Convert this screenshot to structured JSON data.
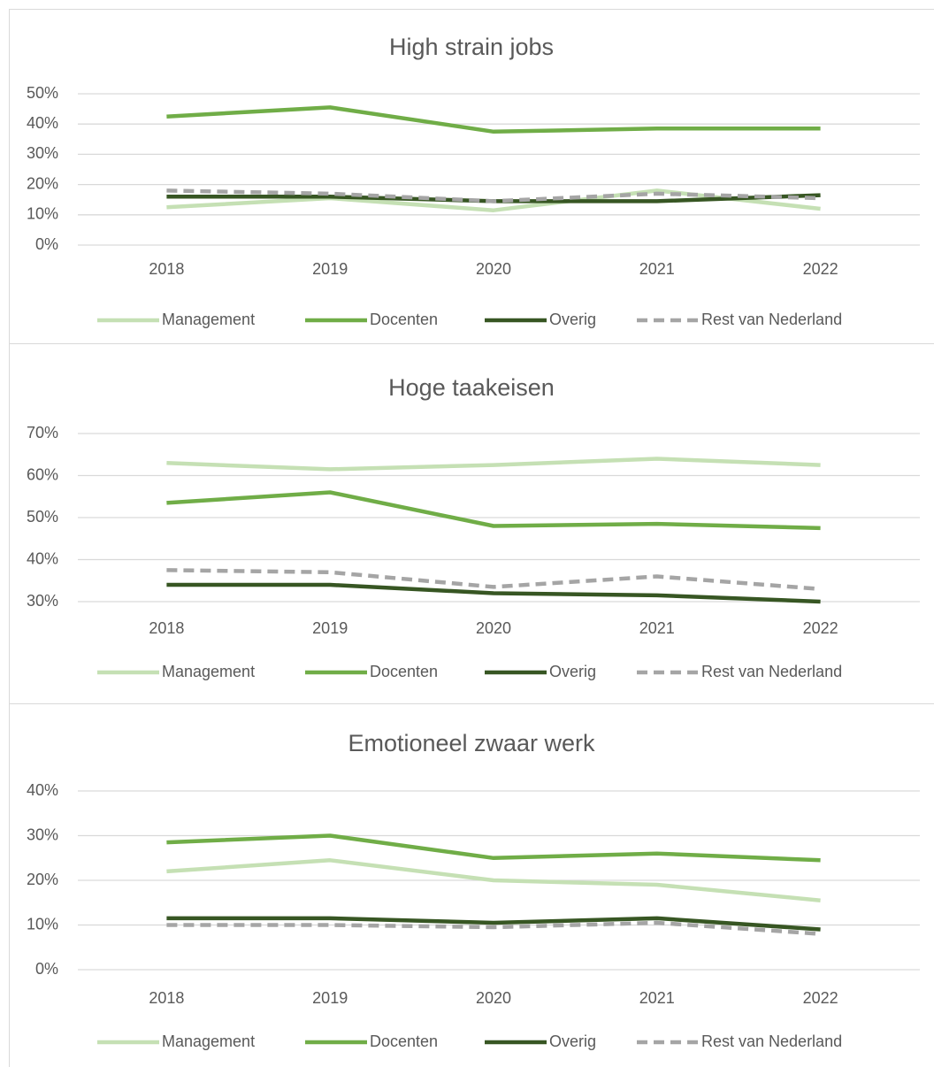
{
  "chart_data": [
    {
      "type": "line",
      "title": "High strain jobs",
      "categories": [
        "2018",
        "2019",
        "2020",
        "2021",
        "2022"
      ],
      "ylim": [
        0,
        50
      ],
      "yticks": [
        {
          "value": 0,
          "label": "0%"
        },
        {
          "value": 10,
          "label": "10%"
        },
        {
          "value": 20,
          "label": "20%"
        },
        {
          "value": 30,
          "label": "30%"
        },
        {
          "value": 40,
          "label": "40%"
        },
        {
          "value": 50,
          "label": "50%"
        }
      ],
      "grid": true,
      "legend": "bottom",
      "series": [
        {
          "name": "Management",
          "color": "#c5e0b4",
          "values": [
            12.5,
            15.5,
            11.5,
            18,
            12
          ]
        },
        {
          "name": "Docenten",
          "color": "#70ad47",
          "values": [
            42.5,
            45.5,
            37.5,
            38.5,
            38.5
          ]
        },
        {
          "name": "Overig",
          "color": "#375623",
          "values": [
            16,
            16,
            14.5,
            14.5,
            16.5
          ]
        },
        {
          "name": "Rest van Nederland",
          "color": "#a5a5a5",
          "dashed": true,
          "values": [
            18,
            17,
            14.5,
            17,
            15.5
          ]
        }
      ]
    },
    {
      "type": "line",
      "title": "Hoge taakeisen",
      "categories": [
        "2018",
        "2019",
        "2020",
        "2021",
        "2022"
      ],
      "ylim": [
        30,
        70
      ],
      "yticks": [
        {
          "value": 30,
          "label": "30%"
        },
        {
          "value": 40,
          "label": "40%"
        },
        {
          "value": 50,
          "label": "50%"
        },
        {
          "value": 60,
          "label": "60%"
        },
        {
          "value": 70,
          "label": "70%"
        }
      ],
      "grid": true,
      "legend": "bottom",
      "series": [
        {
          "name": "Management",
          "color": "#c5e0b4",
          "values": [
            63,
            61.5,
            62.5,
            64,
            62.5
          ]
        },
        {
          "name": "Docenten",
          "color": "#70ad47",
          "values": [
            53.5,
            56,
            48,
            48.5,
            47.5
          ]
        },
        {
          "name": "Overig",
          "color": "#375623",
          "values": [
            34,
            34,
            32,
            31.5,
            30
          ]
        },
        {
          "name": "Rest van Nederland",
          "color": "#a5a5a5",
          "dashed": true,
          "values": [
            37.5,
            37,
            33.5,
            36,
            33
          ]
        }
      ]
    },
    {
      "type": "line",
      "title": "Emotioneel zwaar werk",
      "categories": [
        "2018",
        "2019",
        "2020",
        "2021",
        "2022"
      ],
      "ylim": [
        0,
        40
      ],
      "yticks": [
        {
          "value": 0,
          "label": "0%"
        },
        {
          "value": 10,
          "label": "10%"
        },
        {
          "value": 20,
          "label": "20%"
        },
        {
          "value": 30,
          "label": "30%"
        },
        {
          "value": 40,
          "label": "40%"
        }
      ],
      "grid": true,
      "legend": "bottom",
      "series": [
        {
          "name": "Management",
          "color": "#c5e0b4",
          "values": [
            22,
            24.5,
            20,
            19,
            15.5
          ]
        },
        {
          "name": "Docenten",
          "color": "#70ad47",
          "values": [
            28.5,
            30,
            25,
            26,
            24.5
          ]
        },
        {
          "name": "Overig",
          "color": "#375623",
          "values": [
            11.5,
            11.5,
            10.5,
            11.5,
            9
          ]
        },
        {
          "name": "Rest van Nederland",
          "color": "#a5a5a5",
          "dashed": true,
          "values": [
            10,
            10,
            9.5,
            10.5,
            8
          ]
        }
      ]
    }
  ]
}
